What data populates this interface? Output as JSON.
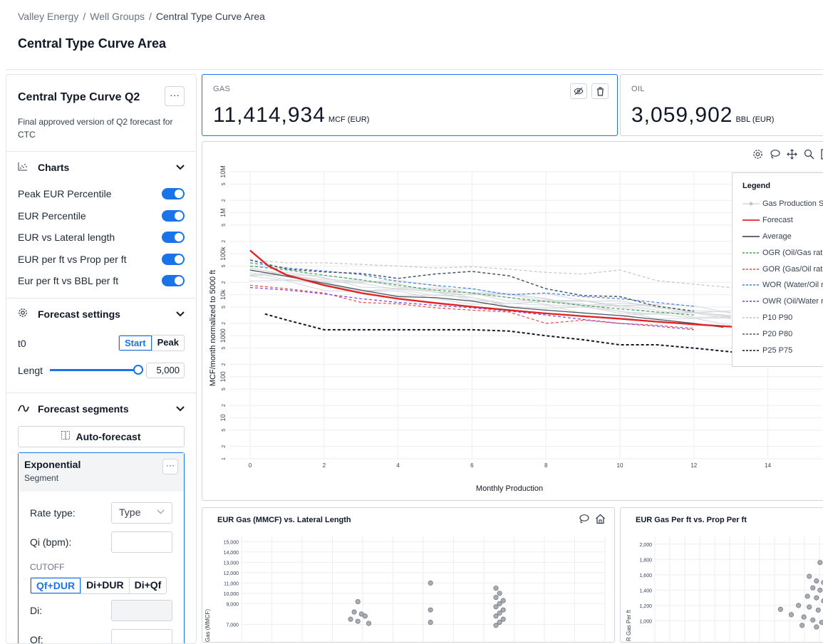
{
  "breadcrumb": {
    "items": [
      "Valley Energy",
      "Well Groups",
      "Central Type Curve Area"
    ],
    "sep": "/"
  },
  "page_title": "Central Type Curve Area",
  "curve": {
    "name": "Central Type Curve Q2",
    "description": "Final approved version of Q2 forecast for CTC",
    "more": "···"
  },
  "charts_section": {
    "title": "Charts",
    "icon": "scatter-chart-icon",
    "toggles": [
      {
        "label": "Peak EUR Percentile",
        "on": true
      },
      {
        "label": "EUR Percentile",
        "on": true
      },
      {
        "label": "EUR vs Lateral length",
        "on": true
      },
      {
        "label": "EUR per ft vs Prop per ft",
        "on": true
      },
      {
        "label": "Eur per ft vs BBL per ft",
        "on": true
      }
    ]
  },
  "forecast_settings": {
    "title": "Forecast settings",
    "icon": "gear-icon",
    "t0_label": "t0",
    "t0_options": [
      "Start",
      "Peak"
    ],
    "t0_selected": "Start",
    "length_label": "Lengt",
    "length_value": "5,000",
    "length_slider_level": 1.0
  },
  "forecast_segments": {
    "title": "Forecast segments",
    "icon": "curve-icon",
    "auto_forecast": "Auto-forecast",
    "segment": {
      "title": "Exponential",
      "subtitle": "Segment",
      "rate_type_label": "Rate type:",
      "rate_type_value": "Type",
      "qi_label": "Qi (bpm):",
      "qi_value": "",
      "cutoff_label": "CUTOFF",
      "cutoff_options": [
        "Qf+DUR",
        "Di+DUR",
        "Di+Qf"
      ],
      "cutoff_selected": "Qf+DUR",
      "di_label": "Di:",
      "qf_label": "Qf:"
    }
  },
  "metrics": {
    "gas": {
      "label": "GAS",
      "value": "11,414,934",
      "unit": "MCF (EUR)"
    },
    "oil": {
      "label": "OIL",
      "value": "3,059,902",
      "unit": "BBL (EUR)"
    }
  },
  "main_chart": {
    "toolbar_icons": [
      "settings-icon",
      "lasso-icon",
      "pan-icon",
      "zoom-icon",
      "zoom-in-icon",
      "zoom-out-icon"
    ],
    "ylabel": "MCF/month normalized to 5000 ft",
    "xlabel": "Monthly Production",
    "legend": {
      "title": "Legend",
      "items": [
        {
          "label": "Gas Production Se",
          "color": "#c4c4c4",
          "style": "marker"
        },
        {
          "label": "Forecast",
          "color": "#e02424",
          "style": "solid"
        },
        {
          "label": "Average",
          "color": "#4b5563",
          "style": "solid"
        },
        {
          "label": "OGR (Oil/Gas ratio",
          "color": "#3aa757",
          "style": "dashed"
        },
        {
          "label": "GOR (Gas/Oil ratio",
          "color": "#ef4444",
          "style": "dashed"
        },
        {
          "label": "WOR (Water/Oil ra",
          "color": "#3b82f6",
          "style": "dashed"
        },
        {
          "label": "OWR (Oil/Water ra",
          "color": "#7c3aed",
          "style": "dashed"
        },
        {
          "label": "P10 P90",
          "color": "#c4c4c4",
          "style": "dashed"
        },
        {
          "label": "P20 P80",
          "color": "#4b5563",
          "style": "dashed"
        },
        {
          "label": "P25 P75",
          "color": "#111827",
          "style": "dashed"
        }
      ]
    }
  },
  "chart_data": [
    {
      "type": "line",
      "xlabel": "Monthly Production",
      "ylabel": "MCF/month normalized to 5000 ft",
      "log_y": true,
      "xlim": [
        0,
        15
      ],
      "ylim": [
        1,
        10000000
      ],
      "x_ticks": [
        0,
        2,
        4,
        6,
        8,
        10,
        12,
        14
      ],
      "y_ticks": [
        "1",
        "2",
        "5",
        "10",
        "2",
        "5",
        "100",
        "2",
        "5",
        "1000",
        "2",
        "5",
        "10k",
        "2",
        "5",
        "100k",
        "2",
        "5",
        "1M",
        "2",
        "5",
        "10M"
      ],
      "series": [
        {
          "name": "Forecast",
          "x": [
            0,
            0.5,
            1,
            2,
            3,
            4,
            5,
            6,
            7,
            8,
            9,
            10,
            11,
            12,
            13.3
          ],
          "y": [
            120000,
            50000,
            30000,
            17000,
            11000,
            8000,
            6300,
            5100,
            4200,
            3500,
            3000,
            2600,
            2200,
            1900,
            1600
          ]
        },
        {
          "name": "Average",
          "x": [
            0,
            1,
            2,
            3,
            4,
            5,
            6,
            7,
            8,
            9,
            10,
            11,
            12,
            12.8
          ],
          "y": [
            40000,
            28000,
            19000,
            13000,
            9000,
            8500,
            7000,
            5000,
            4200,
            3600,
            3100,
            2500,
            2000,
            1600
          ]
        },
        {
          "name": "OGR (Oil/Gas ratio)",
          "x": [
            0,
            1,
            2,
            3,
            4,
            5,
            6,
            7,
            8,
            9,
            10,
            11,
            12
          ],
          "y": [
            50000,
            40000,
            30000,
            23000,
            17000,
            13000,
            11000,
            8500,
            6800,
            5500,
            4500,
            3800,
            3200
          ]
        },
        {
          "name": "GOR (Gas/Oil ratio)",
          "x": [
            0,
            1,
            2,
            3,
            4,
            5,
            6,
            7,
            8,
            9,
            10,
            11,
            12
          ],
          "y": [
            17000,
            14000,
            11000,
            6500,
            6000,
            4800,
            4200,
            3800,
            2000,
            2400,
            2000,
            1800,
            1500
          ]
        },
        {
          "name": "WOR (Water/Oil ratio)",
          "x": [
            0,
            1,
            2,
            3,
            4,
            5,
            6,
            7,
            8,
            9,
            10,
            11,
            12
          ],
          "y": [
            60000,
            45000,
            38000,
            31000,
            21000,
            17000,
            14000,
            10000,
            11000,
            9000,
            8000,
            6500,
            5200
          ]
        },
        {
          "name": "OWR (Oil/Water ratio)",
          "x": [
            0,
            1,
            2,
            3,
            4,
            5,
            6,
            7,
            8,
            9,
            10,
            11,
            12
          ],
          "y": [
            15000,
            13000,
            10500,
            8000,
            6500,
            5500,
            4800,
            4000,
            3200,
            2500,
            2000,
            1700,
            1400
          ]
        },
        {
          "name": "P10 P90",
          "x": [
            0,
            1,
            2,
            3,
            4,
            5,
            6,
            7,
            8,
            9,
            10,
            11,
            12,
            13,
            13.8
          ],
          "y": [
            70000,
            60000,
            60000,
            55000,
            50000,
            45000,
            48000,
            42000,
            35000,
            32000,
            40000,
            22000,
            18000,
            15000,
            14000
          ]
        },
        {
          "name": "P20 P80",
          "x": [
            0,
            1,
            2,
            3,
            4,
            5,
            6,
            7,
            8,
            9,
            10,
            11,
            12
          ],
          "y": [
            70000,
            42000,
            36000,
            33000,
            25000,
            32000,
            37000,
            29000,
            14000,
            9500,
            9000,
            5200,
            4000
          ]
        },
        {
          "name": "P25 P75",
          "x": [
            0.4,
            1,
            2,
            3,
            4,
            5,
            6,
            7,
            8,
            9,
            10,
            11,
            12,
            13.3
          ],
          "y": [
            3400,
            2400,
            1400,
            1400,
            1400,
            1400,
            1400,
            1300,
            1000,
            800,
            600,
            600,
            500,
            380
          ]
        },
        {
          "name": "Gas Production Series",
          "x": [
            0,
            1,
            2,
            3,
            4,
            5,
            6,
            7,
            8,
            9,
            10,
            11,
            12,
            13
          ],
          "y": [
            35000,
            30000,
            22000,
            17000,
            15000,
            12000,
            10000,
            8000,
            7000,
            5800,
            5000,
            4200,
            3600,
            3100
          ]
        }
      ]
    },
    {
      "type": "scatter",
      "title": "EUR Gas (MMCF) vs. Lateral Length",
      "ylabel": "Gas (MMCF)",
      "y_ticks": [
        7000,
        9000,
        10000,
        11000,
        12000,
        13000,
        14000,
        15000
      ],
      "ylim": [
        6000,
        15500
      ],
      "points": [
        [
          0.32,
          9200
        ],
        [
          0.31,
          8200
        ],
        [
          0.33,
          8000
        ],
        [
          0.34,
          7800
        ],
        [
          0.3,
          7500
        ],
        [
          0.32,
          7300
        ],
        [
          0.35,
          7100
        ],
        [
          0.52,
          11000
        ],
        [
          0.52,
          8400
        ],
        [
          0.52,
          7200
        ],
        [
          0.7,
          10500
        ],
        [
          0.71,
          10000
        ],
        [
          0.7,
          9600
        ],
        [
          0.72,
          9300
        ],
        [
          0.71,
          9000
        ],
        [
          0.7,
          8700
        ],
        [
          0.72,
          8400
        ],
        [
          0.71,
          8100
        ],
        [
          0.7,
          7800
        ],
        [
          0.72,
          7500
        ],
        [
          0.71,
          7200
        ],
        [
          0.7,
          6900
        ]
      ]
    },
    {
      "type": "scatter",
      "title": "EUR Gas Per ft vs. Prop Per ft",
      "ylabel": "R Gas Per ft",
      "y_ticks": [
        1000,
        1200,
        1400,
        1600,
        1800,
        2000
      ],
      "ylim": [
        800,
        2100
      ],
      "points": [
        [
          0.95,
          1960
        ],
        [
          0.95,
          1860
        ],
        [
          0.98,
          1800
        ],
        [
          0.92,
          1760
        ],
        [
          0.97,
          1620
        ],
        [
          0.86,
          1580
        ],
        [
          0.9,
          1520
        ],
        [
          0.94,
          1500
        ],
        [
          0.99,
          1470
        ],
        [
          0.88,
          1430
        ],
        [
          0.92,
          1400
        ],
        [
          0.96,
          1360
        ],
        [
          0.85,
          1320
        ],
        [
          0.9,
          1300
        ],
        [
          0.94,
          1260
        ],
        [
          0.98,
          1240
        ],
        [
          0.8,
          1200
        ],
        [
          0.86,
          1180
        ],
        [
          0.91,
          1140
        ],
        [
          0.95,
          1100
        ],
        [
          0.7,
          1150
        ],
        [
          0.76,
          1080
        ],
        [
          0.83,
          1050
        ],
        [
          0.88,
          1010
        ],
        [
          0.93,
          980
        ],
        [
          0.97,
          950
        ],
        [
          0.82,
          940
        ],
        [
          0.9,
          920
        ]
      ]
    }
  ],
  "small_charts": {
    "a": {
      "title": "EUR Gas (MMCF) vs. Lateral Length",
      "ylabel": "Gas (MMCF)",
      "tools": [
        "lasso-icon",
        "home-icon"
      ]
    },
    "b": {
      "title": "EUR Gas Per ft vs. Prop Per ft",
      "ylabel": "R Gas Per ft"
    }
  }
}
